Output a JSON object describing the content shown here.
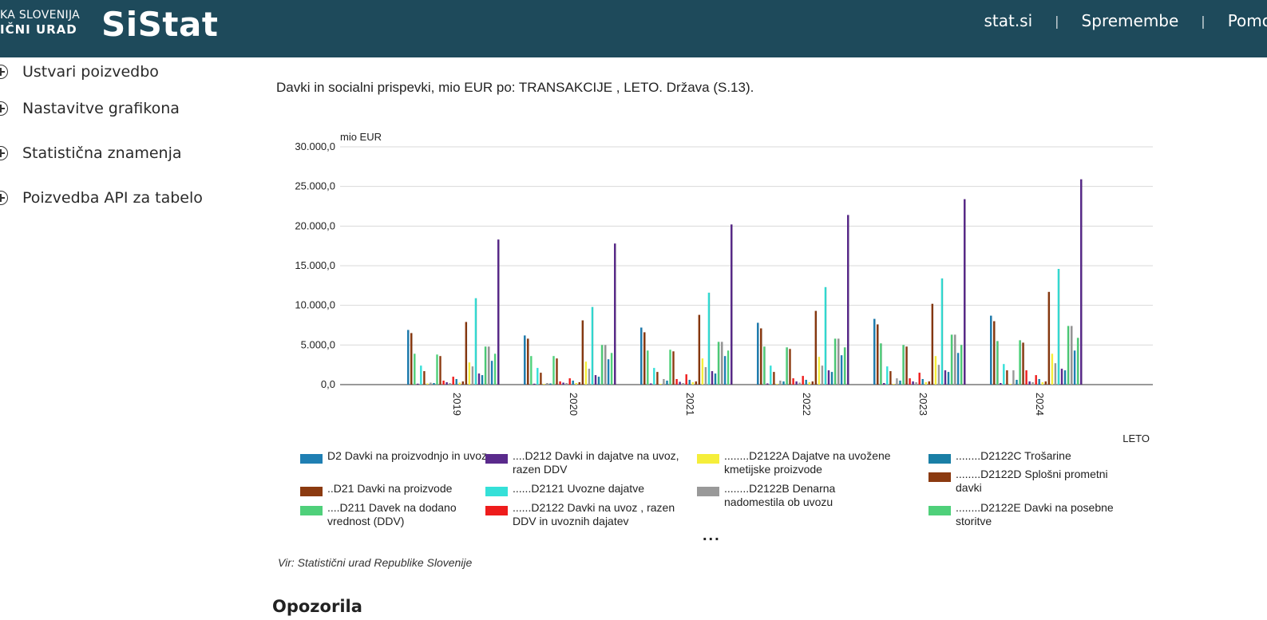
{
  "header": {
    "brand_line1": "KA SLOVENIJA",
    "brand_line2": "IČNI URAD",
    "brand_name": "SiStat",
    "nav": [
      {
        "label": "stat.si"
      },
      {
        "label": "Spremembe"
      },
      {
        "label": "Pomo"
      }
    ]
  },
  "sidebar": {
    "items": [
      {
        "label": "Ustvari poizvedbo",
        "icon": "plus-circle-icon"
      },
      {
        "label": "Nastavitve grafikona",
        "icon": "plus-circle-icon"
      },
      {
        "label": "Statistična znamenja",
        "icon": "plus-circle-icon"
      },
      {
        "label": "Poizvedba API za tabelo",
        "icon": "plus-circle-icon"
      }
    ]
  },
  "main": {
    "chart_title": "Davki in socialni prispevki, mio EUR po: TRANSAKCIJE ,  LETO. Država (S.13).",
    "more_label": "...",
    "source": "Vir: Statistični urad Republike Slovenije",
    "section_heading": "Opozorila"
  },
  "chart_data": {
    "type": "bar",
    "ylabel": "mio EUR",
    "xlabel": "LETO",
    "ylim": [
      0,
      30000
    ],
    "yticks": [
      "0,0",
      "5.000,0",
      "10.000,0",
      "15.000,0",
      "20.000,0",
      "25.000,0",
      "30.000,0"
    ],
    "grid": true,
    "legend_position": "bottom",
    "categories": [
      "2019",
      "2020",
      "2021",
      "2022",
      "2023",
      "2024"
    ],
    "series": [
      {
        "name": "D2 Davki na proizvodnjo in uvoz",
        "color": "#1f7fb3"
      },
      {
        "name": "..D21 Davki na proizvode",
        "color": "#8b3a10"
      },
      {
        "name": "....D211 Davek na dodano vrednost (DDV)",
        "color": "#4fd07a"
      },
      {
        "name": "....D212 Davki in dajatve na uvoz, razen DDV",
        "color": "#5a2a8c"
      },
      {
        "name": "......D2121 Uvozne dajatve",
        "color": "#35e0d8"
      },
      {
        "name": "......D2122 Davki na uvoz , razen DDV in uvoznih dajatev",
        "color": "#ee1c1c"
      },
      {
        "name": "........D2122A Dajatve na uvožene kmetijske proizvode",
        "color": "#f5ee3a"
      },
      {
        "name": "........D2122B Denarna nadomestila ob uvozu",
        "color": "#999999"
      },
      {
        "name": "........D2122C Trošarine",
        "color": "#1a7fa6"
      },
      {
        "name": "........D2122D Splošni prometni davki",
        "color": "#8b3a10"
      },
      {
        "name": "........D2122E Davki na posebne storitve",
        "color": "#4fd07a"
      }
    ],
    "groups": [
      {
        "year": "2019",
        "values": [
          6900,
          6500,
          3900,
          120,
          2400,
          1700,
          150,
          250,
          200,
          3800,
          3600,
          500,
          300,
          200,
          1000,
          700,
          250,
          400,
          7900,
          2800,
          2300,
          10900,
          1400,
          1200,
          4800,
          4800,
          3000,
          3900,
          18300
        ]
      },
      {
        "year": "2020",
        "values": [
          6200,
          5800,
          3600,
          120,
          2100,
          1500,
          100,
          200,
          150,
          3600,
          3300,
          400,
          250,
          200,
          800,
          500,
          200,
          300,
          8100,
          2900,
          2000,
          9800,
          1200,
          1000,
          5000,
          5000,
          3200,
          4000,
          17800
        ]
      },
      {
        "year": "2021",
        "values": [
          7200,
          6600,
          4300,
          150,
          2100,
          1600,
          100,
          700,
          500,
          4400,
          4200,
          700,
          350,
          200,
          1300,
          600,
          300,
          400,
          8800,
          3300,
          2200,
          11600,
          1700,
          1400,
          5400,
          5400,
          3600,
          4300,
          20200
        ]
      },
      {
        "year": "2022",
        "values": [
          7800,
          7100,
          4800,
          150,
          2400,
          1600,
          100,
          500,
          400,
          4700,
          4500,
          800,
          400,
          250,
          1100,
          600,
          300,
          400,
          9300,
          3500,
          2400,
          12300,
          1800,
          1600,
          5800,
          5800,
          3700,
          4700,
          21400
        ]
      },
      {
        "year": "2023",
        "values": [
          8300,
          7600,
          5200,
          200,
          2300,
          1700,
          100,
          800,
          500,
          5000,
          4800,
          800,
          400,
          300,
          1500,
          700,
          300,
          400,
          10200,
          3600,
          2500,
          13400,
          1800,
          1600,
          6300,
          6300,
          4000,
          5000,
          23400
        ]
      },
      {
        "year": "2024",
        "values": [
          8700,
          8000,
          5500,
          200,
          2600,
          1800,
          100,
          1800,
          600,
          5600,
          5300,
          1800,
          400,
          300,
          1200,
          700,
          300,
          400,
          11700,
          3900,
          2700,
          14600,
          2000,
          1800,
          7400,
          7400,
          4300,
          5900,
          25900
        ]
      }
    ],
    "group_bar_colors": [
      "#1f7fb3",
      "#8b3a10",
      "#4fd07a",
      "#5a2a8c",
      "#35e0d8",
      "#8b3a10",
      "#f5ee3a",
      "#999999",
      "#1a7fa6",
      "#4fd07a",
      "#8b3a10",
      "#ee1c1c",
      "#5a2a8c",
      "#999999",
      "#ee1c1c",
      "#1a7fa6",
      "#f5ee3a",
      "#8b3a10",
      "#8b3a10",
      "#f5ee3a",
      "#999999",
      "#35e0d8",
      "#5a2a8c",
      "#1a7fa6",
      "#4fd07a",
      "#999999",
      "#1f7fb3",
      "#4fd07a",
      "#5a2a8c"
    ]
  },
  "legend": {
    "items": [
      {
        "text": "D2 Davki na proizvodnjo in uvoz",
        "color": "#1f7fb3"
      },
      {
        "text": "..D21 Davki na proizvode",
        "color": "#8b3a10"
      },
      {
        "text": "....D211 Davek na dodano vrednost (DDV)",
        "color": "#4fd07a"
      },
      {
        "text": "....D212 Davki in dajatve na uvoz, razen DDV",
        "color": "#5a2a8c"
      },
      {
        "text": "......D2121 Uvozne dajatve",
        "color": "#35e0d8"
      },
      {
        "text": "......D2122 Davki na uvoz , razen DDV in uvoznih dajatev",
        "color": "#ee1c1c"
      },
      {
        "text": "........D2122A Dajatve na uvožene kmetijske proizvode",
        "color": "#f5ee3a"
      },
      {
        "text": "........D2122B Denarna nadomestila ob uvozu",
        "color": "#999999"
      },
      {
        "text": "........D2122C Trošarine",
        "color": "#1a7fa6"
      },
      {
        "text": "........D2122D Splošni prometni davki",
        "color": "#8b3a10"
      },
      {
        "text": "........D2122E Davki na posebne storitve",
        "color": "#4fd07a"
      }
    ]
  }
}
